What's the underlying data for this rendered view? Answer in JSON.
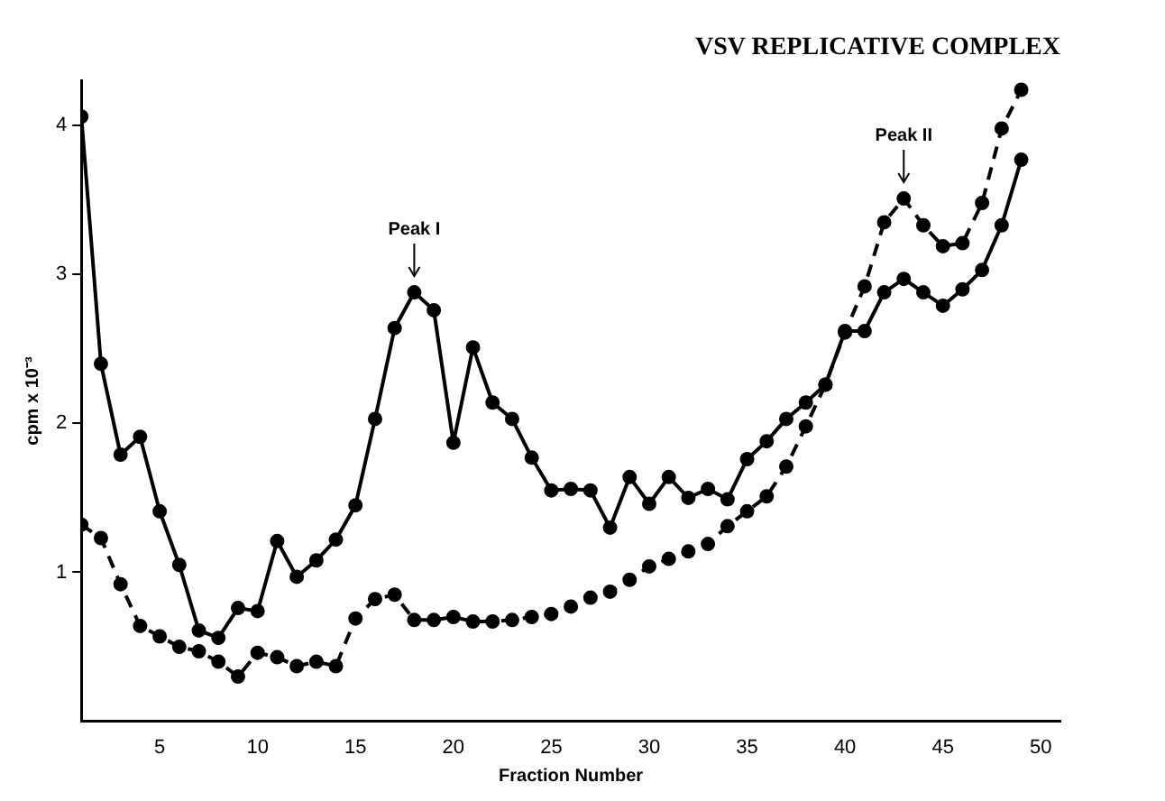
{
  "chart_data": {
    "type": "line",
    "title": "VSV REPLICATIVE COMPLEX",
    "xlabel": "Fraction Number",
    "ylabel": "cpm x 10⁻³",
    "x": [
      1,
      2,
      3,
      4,
      5,
      6,
      7,
      8,
      9,
      10,
      11,
      12,
      13,
      14,
      15,
      16,
      17,
      18,
      19,
      20,
      21,
      22,
      23,
      24,
      25,
      26,
      27,
      28,
      29,
      30,
      31,
      32,
      33,
      34,
      35,
      36,
      37,
      38,
      39,
      40,
      41,
      42,
      43,
      44,
      45,
      46,
      47,
      48,
      49
    ],
    "series": [
      {
        "color": "#000000",
        "line_style": "solid",
        "values": [
          4.06,
          2.4,
          1.79,
          1.91,
          1.41,
          1.05,
          0.61,
          0.56,
          0.76,
          0.74,
          1.21,
          0.97,
          1.08,
          1.22,
          1.45,
          2.03,
          2.64,
          2.88,
          2.76,
          1.87,
          2.51,
          2.14,
          2.03,
          1.77,
          1.55,
          1.56,
          1.55,
          1.3,
          1.64,
          1.46,
          1.64,
          1.5,
          1.56,
          1.49,
          1.76,
          1.88,
          2.03,
          2.14,
          2.26,
          2.62,
          2.62,
          2.88,
          2.97,
          2.88,
          2.79,
          2.9,
          3.03,
          3.33,
          3.77
        ]
      },
      {
        "color": "#000000",
        "line_style": "dashed",
        "values": [
          1.32,
          1.23,
          0.92,
          0.64,
          0.57,
          0.5,
          0.47,
          0.4,
          0.3,
          0.46,
          0.43,
          0.37,
          0.4,
          0.37,
          0.69,
          0.82,
          0.85,
          0.68,
          0.68,
          0.7,
          0.67,
          0.67,
          0.68,
          0.7,
          0.72,
          0.77,
          0.83,
          0.87,
          0.95,
          1.04,
          1.09,
          1.14,
          1.19,
          1.31,
          1.41,
          1.51,
          1.71,
          1.98,
          2.26,
          2.61,
          2.92,
          3.35,
          3.51,
          3.33,
          3.19,
          3.21,
          3.48,
          3.98,
          4.24
        ]
      }
    ],
    "xlim": [
      1,
      51
    ],
    "xticks": [
      5,
      10,
      15,
      20,
      25,
      30,
      35,
      40,
      45,
      50
    ],
    "ylim": [
      0,
      4.3
    ],
    "yticks": [
      1,
      2,
      3,
      4
    ],
    "annotations": [
      {
        "text": "Peak I",
        "x": 18,
        "y": 2.88
      },
      {
        "text": "Peak II",
        "x": 43,
        "y": 3.51
      }
    ],
    "grid": false,
    "legend": false,
    "marker": "circle"
  }
}
